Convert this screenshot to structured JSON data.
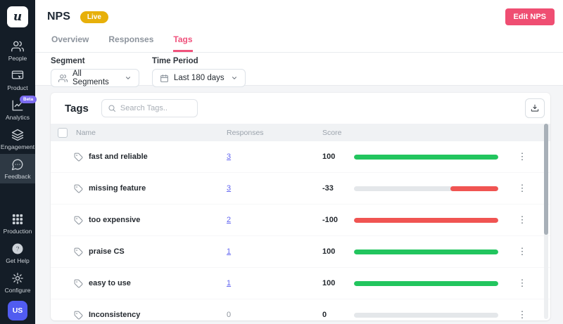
{
  "sidebar": {
    "logo_text": "u",
    "items": [
      {
        "label": "People",
        "icon": "people-icon"
      },
      {
        "label": "Product",
        "icon": "product-icon"
      },
      {
        "label": "Analytics",
        "icon": "analytics-icon",
        "badge": "Beta"
      },
      {
        "label": "Engagement",
        "icon": "engagement-icon"
      },
      {
        "label": "Feedback",
        "icon": "feedback-icon",
        "active": true
      }
    ],
    "bottom_items": [
      {
        "label": "Production",
        "icon": "grid-icon"
      },
      {
        "label": "Get Help",
        "icon": "help-icon"
      },
      {
        "label": "Configure",
        "icon": "gear-icon"
      }
    ],
    "avatar": "US"
  },
  "header": {
    "title": "NPS",
    "status_badge": "Live",
    "edit_button": "Edit NPS",
    "tabs": [
      {
        "label": "Overview"
      },
      {
        "label": "Responses"
      },
      {
        "label": "Tags",
        "active": true
      }
    ]
  },
  "filters": {
    "segment_label": "Segment",
    "segment_value": "All Segments",
    "time_label": "Time Period",
    "time_value": "Last 180 days"
  },
  "panel": {
    "title": "Tags",
    "search_placeholder": "Search Tags..",
    "download_icon": "download-icon"
  },
  "table": {
    "columns": [
      "Name",
      "Responses",
      "Score"
    ],
    "rows": [
      {
        "name": "fast and reliable",
        "responses": "3",
        "link": true,
        "score": "100",
        "bar": {
          "color": "green",
          "fill": 1,
          "align": "left"
        }
      },
      {
        "name": "missing feature",
        "responses": "3",
        "link": true,
        "score": "-33",
        "bar": {
          "color": "red",
          "fill": 0.33,
          "align": "right"
        }
      },
      {
        "name": "too expensive",
        "responses": "2",
        "link": true,
        "score": "-100",
        "bar": {
          "color": "red",
          "fill": 1,
          "align": "left"
        }
      },
      {
        "name": "praise CS",
        "responses": "1",
        "link": true,
        "score": "100",
        "bar": {
          "color": "green",
          "fill": 1,
          "align": "left"
        }
      },
      {
        "name": "easy to use",
        "responses": "1",
        "link": true,
        "score": "100",
        "bar": {
          "color": "green",
          "fill": 1,
          "align": "left"
        }
      },
      {
        "name": "Inconsistency",
        "responses": "0",
        "link": false,
        "score": "0",
        "bar": {
          "color": "gray",
          "fill": 0,
          "align": "left"
        }
      }
    ]
  },
  "colors": {
    "green": "#22c55e",
    "red": "#f05452",
    "gray": "#e4e7ea",
    "accent_pink": "#ef4e72",
    "link_indigo": "#6366f1",
    "live_gold": "#e7b00a",
    "beta_purple": "#7b6cf0",
    "sidebar_bg": "#141d27"
  }
}
